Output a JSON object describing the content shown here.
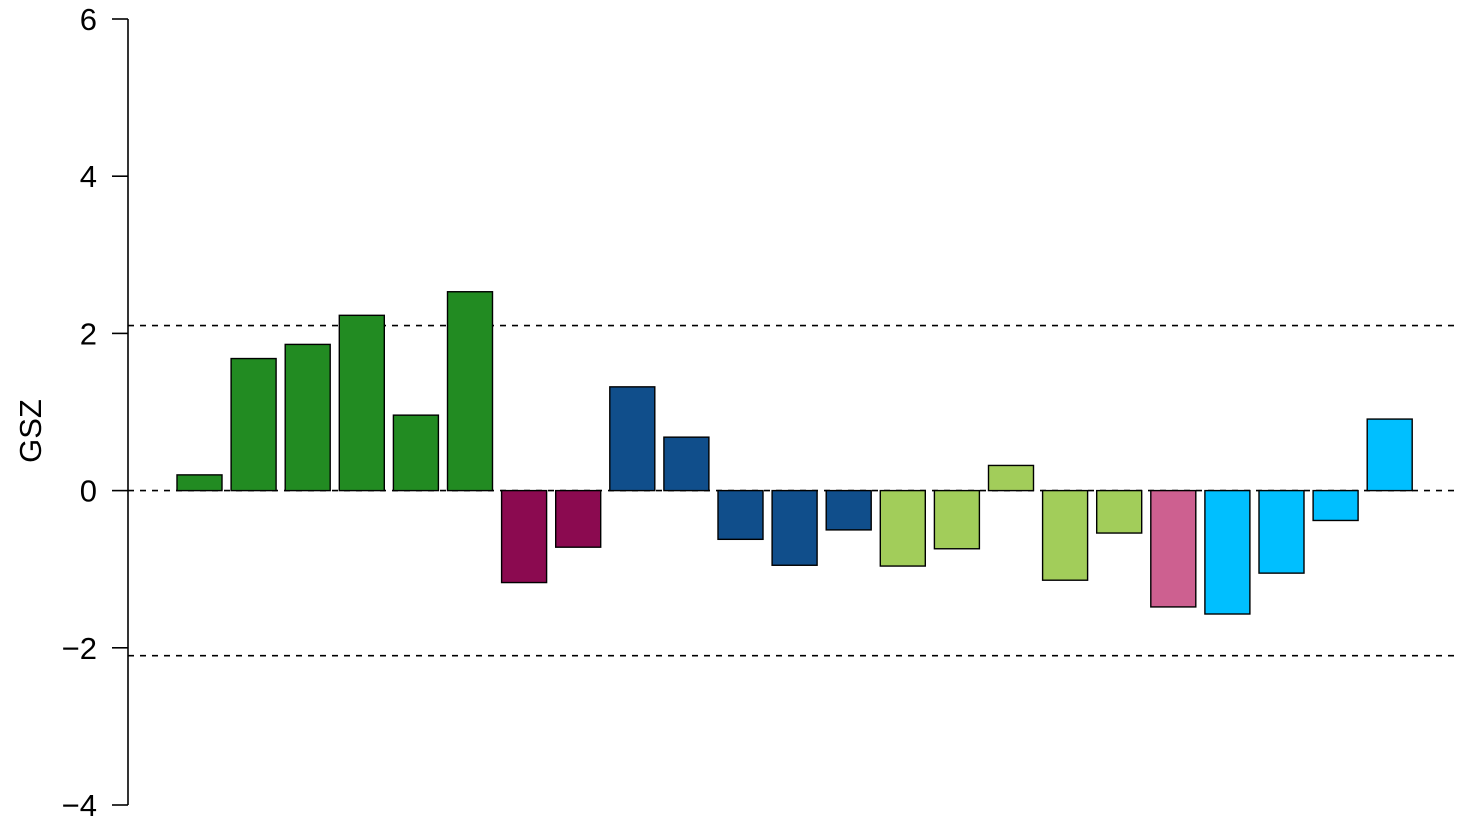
{
  "chart_data": {
    "type": "bar",
    "title": "",
    "xlabel": "",
    "ylabel": "GSZ",
    "ylim": [
      -4,
      6
    ],
    "yticks": [
      -4,
      -2,
      0,
      2,
      4,
      6
    ],
    "ytick_labels": [
      "−4",
      "−2",
      "0",
      "2",
      "4",
      "6"
    ],
    "reference_lines": [
      2.1,
      0,
      -2.1
    ],
    "grid": false,
    "legend": "none",
    "values": [
      0.2,
      1.68,
      1.86,
      2.23,
      0.96,
      2.53,
      -1.17,
      -0.72,
      1.32,
      0.68,
      -0.62,
      -0.95,
      -0.5,
      -0.96,
      -0.74,
      0.32,
      -1.14,
      -0.54,
      -1.48,
      -1.57,
      -1.05,
      -0.38,
      0.91
    ],
    "colors": [
      "#228B22",
      "#228B22",
      "#228B22",
      "#228B22",
      "#228B22",
      "#228B22",
      "#8B0A50",
      "#8B0A50",
      "#104E8B",
      "#104E8B",
      "#104E8B",
      "#104E8B",
      "#104E8B",
      "#A2CD5A",
      "#A2CD5A",
      "#A2CD5A",
      "#A2CD5A",
      "#A2CD5A",
      "#CD6090",
      "#00BFFF",
      "#00BFFF",
      "#00BFFF",
      "#00BFFF"
    ]
  }
}
